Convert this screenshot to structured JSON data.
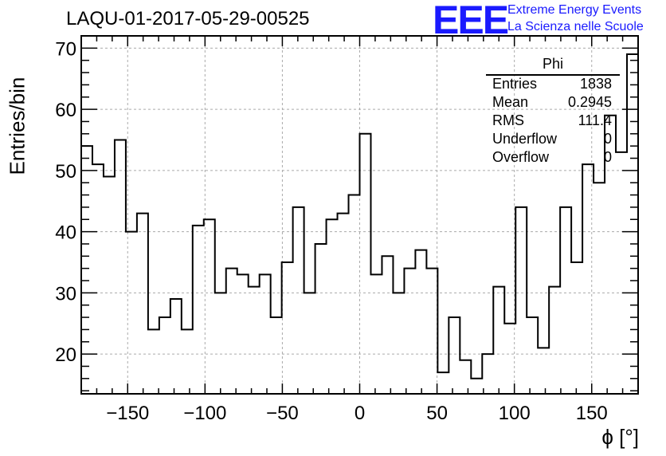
{
  "title": "LAQU-01-2017-05-29-00525",
  "logo": {
    "mark": "EEE",
    "line1": "Extreme Energy Events",
    "line2": "La Scienza nelle Scuole",
    "color": "#1a1aff"
  },
  "chart_data": {
    "type": "histogram",
    "xlabel": "ϕ [°]",
    "ylabel": "Entries/bin",
    "xlim": [
      -180,
      180
    ],
    "ylim": [
      13.5,
      72
    ],
    "bin_width": 7.2,
    "grid": true,
    "x_ticks": [
      -150,
      -100,
      -50,
      0,
      50,
      100,
      150
    ],
    "x_tick_labels": [
      "−150",
      "−100",
      "−50",
      "0",
      "50",
      "100",
      "150"
    ],
    "y_ticks": [
      20,
      30,
      40,
      50,
      60,
      70
    ],
    "values": [
      54,
      51,
      49,
      55,
      40,
      43,
      24,
      26,
      29,
      24,
      41,
      42,
      30,
      34,
      33,
      31,
      33,
      26,
      35,
      44,
      30,
      38,
      42,
      43,
      46,
      56,
      33,
      36,
      30,
      34,
      37,
      34,
      17,
      26,
      19,
      16,
      20,
      31,
      25,
      44,
      26,
      21,
      31,
      44,
      35,
      51,
      48,
      59,
      53,
      69
    ],
    "stats": {
      "name": "Phi",
      "entries_label": "Entries",
      "entries": "1838",
      "mean_label": "Mean",
      "mean": "0.2945",
      "rms_label": "RMS",
      "rms": "111.4",
      "underflow_label": "Underflow",
      "underflow": "0",
      "overflow_label": "Overflow",
      "overflow": "0"
    }
  }
}
